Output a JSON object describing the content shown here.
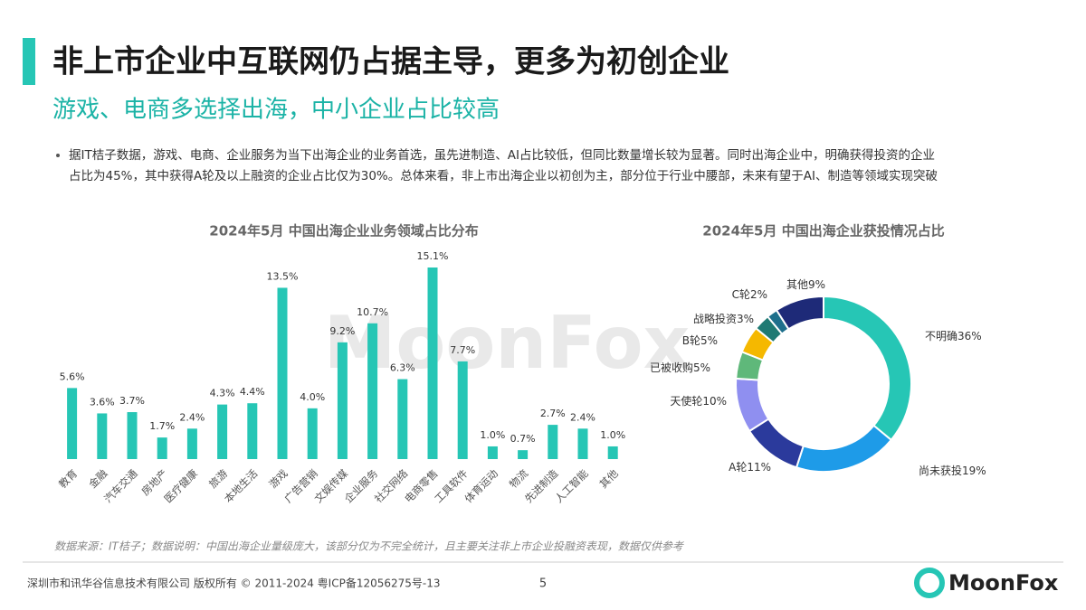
{
  "header": {
    "title": "非上市企业中互联网仍占据主导，更多为初创企业",
    "subtitle": "游戏、电商多选择出海，中小企业占比较高"
  },
  "bullet": [
    "据IT桔子数据，游戏、电商、企业服务为当下出海企业的业务首选，虽先进制造、AI占比较低，但同比数量增长较为显著。同时出海企业中，明确获得投资的企业",
    "占比为45%，其中获得A轮及以上融资的企业占比仅为30%。总体来看，非上市出海企业以初创为主，部分位于行业中腰部，未来有望于AI、制造等领域实现突破"
  ],
  "watermark": "MoonFox",
  "chart_data": [
    {
      "type": "bar",
      "title": "2024年5月 中国出海企业业务领域占比分布",
      "color": "#26c6b5",
      "categories": [
        "教育",
        "金融",
        "汽车交通",
        "房地产",
        "医疗健康",
        "旅游",
        "本地生活",
        "游戏",
        "广告营销",
        "文娱传媒",
        "企业服务",
        "社交网络",
        "电商零售",
        "工具软件",
        "体育运动",
        "物流",
        "先进制造",
        "人工智能",
        "其他"
      ],
      "values": [
        5.6,
        3.6,
        3.7,
        1.7,
        2.4,
        4.3,
        4.4,
        13.5,
        4.0,
        9.2,
        10.7,
        6.3,
        15.1,
        7.7,
        1.0,
        0.7,
        2.7,
        2.4,
        1.0
      ],
      "value_labels": [
        "5.6%",
        "3.6%",
        "3.7%",
        "1.7%",
        "2.4%",
        "4.3%",
        "4.4%",
        "13.5%",
        "4.0%",
        "9.2%",
        "10.7%",
        "6.3%",
        "15.1%",
        "7.7%",
        "1.0%",
        "0.7%",
        "2.7%",
        "2.4%",
        "1.0%"
      ]
    },
    {
      "type": "donut",
      "title": "2024年5月 中国出海企业获投情况占比",
      "categories": [
        "不明确",
        "尚未获投",
        "A轮",
        "天使轮",
        "已被收购",
        "B轮",
        "战略投资",
        "C轮",
        "其他"
      ],
      "values": [
        36,
        19,
        11,
        10,
        5,
        5,
        3,
        2,
        9
      ],
      "value_labels": [
        "36%",
        "19%",
        "11%",
        "10%",
        "5%",
        "5%",
        "3%",
        "2%",
        "9%"
      ],
      "colors": [
        "#26c6b5",
        "#1e9be8",
        "#2b3a9c",
        "#8f8ff0",
        "#5fb87a",
        "#f5b800",
        "#1f7a73",
        "#1e6f8c",
        "#1e2a78"
      ]
    }
  ],
  "source": "数据来源：IT桔子；数据说明：中国出海企业量级庞大，该部分仅为不完全统计，且主要关注非上市企业投融资表现，数据仅供参考",
  "footer": {
    "copyright": "深圳市和讯华谷信息技术有限公司 版权所有 © 2011-2024 粤ICP备12056275号-13",
    "page": "5",
    "logo": "MoonFox"
  }
}
